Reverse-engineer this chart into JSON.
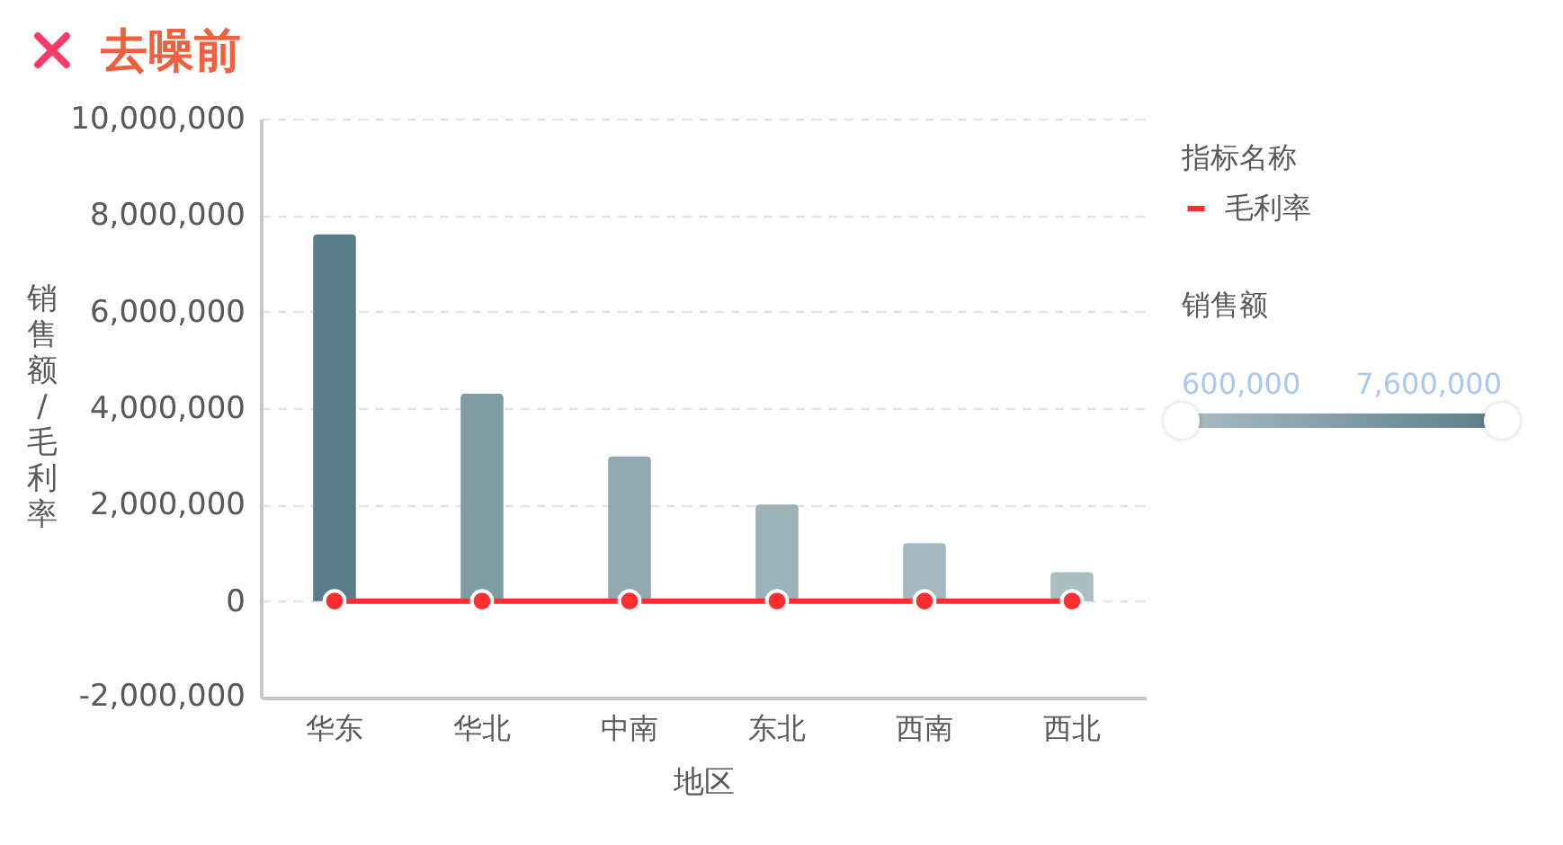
{
  "chart_data": {
    "type": "bar",
    "title": "去噪前",
    "xlabel": "地区",
    "ylabel": "销售额/毛利率",
    "legend_title": "指标名称",
    "clabel": "销售额",
    "categories": [
      "华东",
      "华北",
      "中南",
      "东北",
      "西南",
      "西北"
    ],
    "series": [
      {
        "type": "bar",
        "values": [
          7600000,
          4300000,
          3000000,
          2000000,
          1200000,
          600000
        ],
        "colors": [
          "#5a7d8a",
          "#809ca5",
          "#92a9b0",
          "#9cb2b9",
          "#a5bac0",
          "#a9bdc2"
        ]
      },
      {
        "type": "line",
        "name": "毛利率",
        "color": "#ff2d2d",
        "values": [
          0,
          0,
          0,
          0,
          0,
          0
        ],
        "marker": "circle"
      }
    ],
    "ylim": [
      -2000000,
      10000000
    ],
    "yticks": [
      {
        "value": -2000000,
        "label": "-2,000,000"
      },
      0,
      {
        "value": 2000000,
        "label": "2,000,000"
      },
      {
        "value": 4000000,
        "label": "4,000,000"
      },
      {
        "value": 6000000,
        "label": "6,000,000"
      },
      {
        "value": 8000000,
        "label": "8,000,000"
      },
      {
        "value": 10000000,
        "label": "10,000,000"
      }
    ],
    "clim": [
      600000,
      7600000
    ],
    "cticks": [
      {
        "value": 600000,
        "label": "600,000"
      },
      {
        "value": 7600000,
        "label": "7,600,000"
      }
    ],
    "grid": "y",
    "legend": "right"
  }
}
